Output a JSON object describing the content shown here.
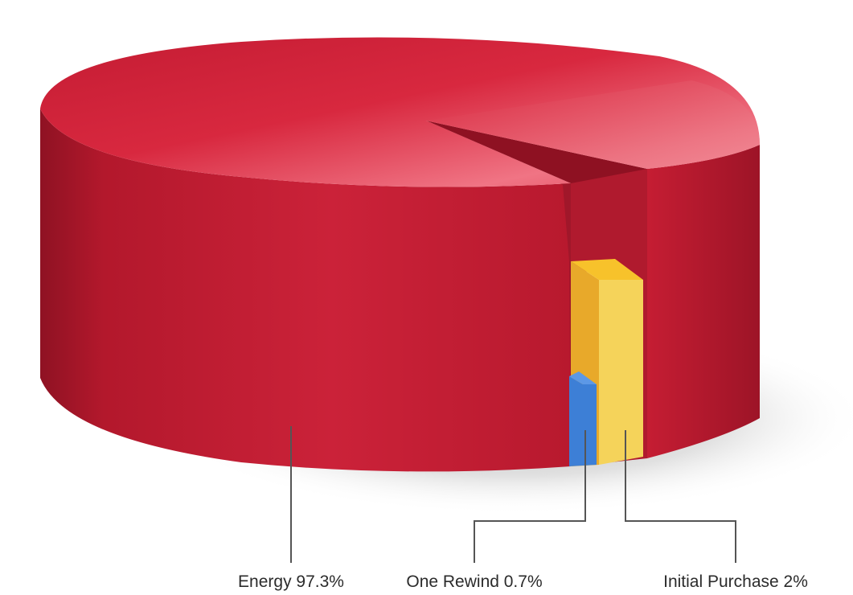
{
  "chart_data": {
    "type": "pie",
    "style": "3d-cylinder-exploded",
    "categories": [
      "Energy",
      "One Rewind",
      "Initial Purchase"
    ],
    "values": [
      97.3,
      0.7,
      2
    ],
    "labels": [
      "Energy 97.3%",
      "One Rewind 0.7%",
      "Initial Purchase 2%"
    ],
    "colors": [
      "#c21a31",
      "#3d7fd6",
      "#f2c53a"
    ],
    "unit": "%",
    "legend": "none",
    "grid": false
  }
}
